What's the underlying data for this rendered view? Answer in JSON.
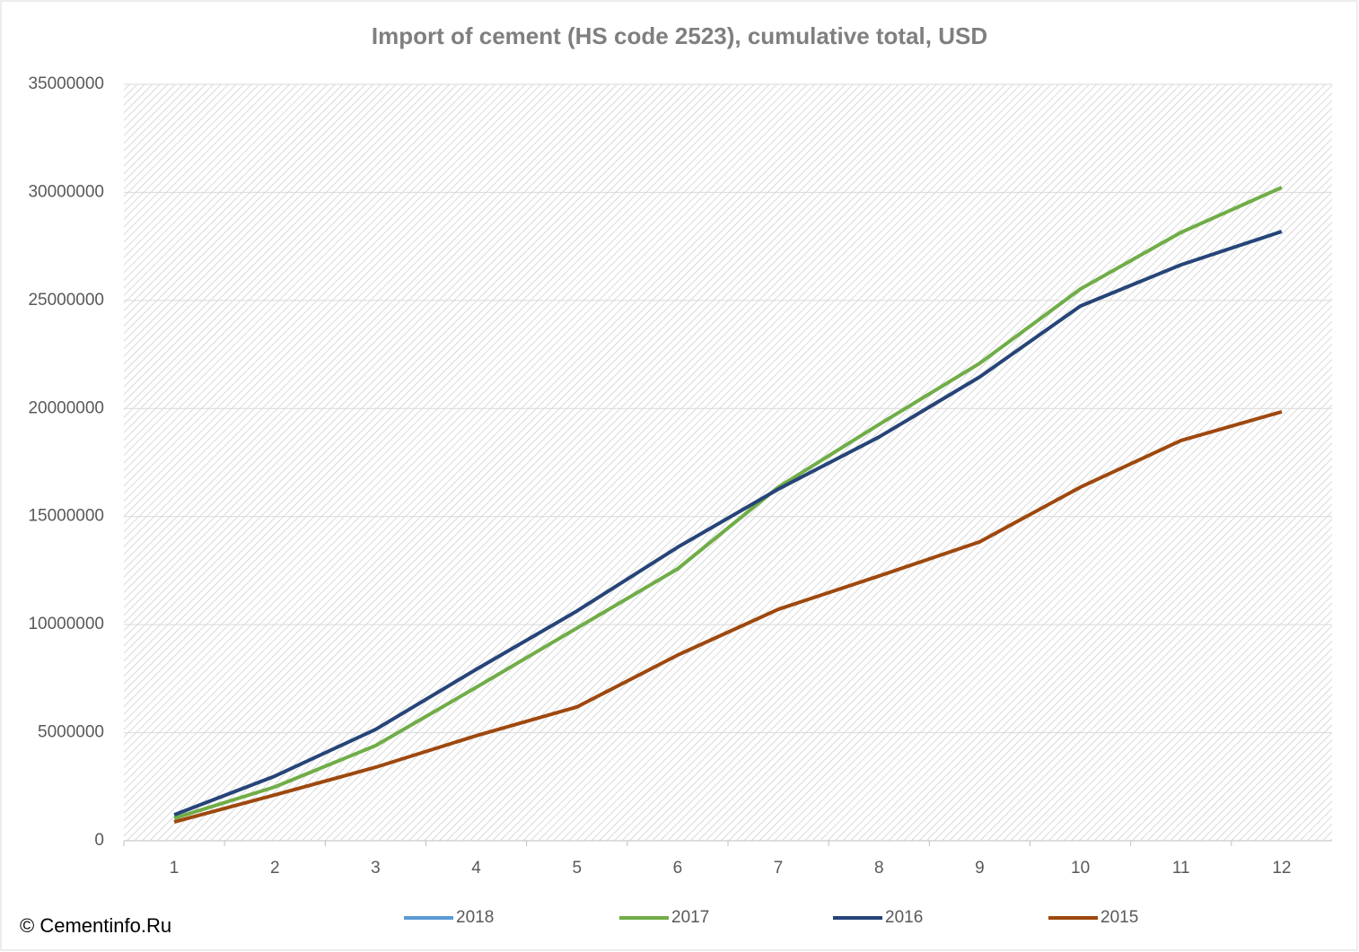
{
  "chart_data": {
    "type": "line",
    "title": "Import of cement (HS code 2523), cumulative total, USD",
    "watermark": "© Cementinfo.Ru",
    "categories": [
      "1",
      "2",
      "3",
      "4",
      "5",
      "6",
      "7",
      "8",
      "9",
      "10",
      "11",
      "12"
    ],
    "series": [
      {
        "name": "2018",
        "color": "#5b9bd5",
        "values": [
          null,
          null,
          null,
          null,
          null,
          null,
          null,
          null,
          null,
          null,
          null,
          null
        ]
      },
      {
        "name": "2017",
        "color": "#70ad47",
        "values": [
          1040000,
          2490000,
          4400000,
          7100000,
          9840000,
          12580000,
          16360000,
          19260000,
          22090000,
          25530000,
          28150000,
          30230000
        ]
      },
      {
        "name": "2016",
        "color": "#264478",
        "values": [
          1200000,
          2990000,
          5150000,
          7930000,
          10630000,
          13580000,
          16270000,
          18680000,
          21460000,
          24740000,
          26650000,
          28190000
        ]
      },
      {
        "name": "2015",
        "color": "#9e480e",
        "values": [
          870000,
          2120000,
          3400000,
          4860000,
          6190000,
          8590000,
          10710000,
          12250000,
          13830000,
          16360000,
          18520000,
          19850000
        ]
      }
    ],
    "ylim": [
      0,
      35000000
    ],
    "yticks": [
      0,
      5000000,
      10000000,
      15000000,
      20000000,
      25000000,
      30000000,
      35000000
    ],
    "grid": true,
    "legend": "bottom"
  }
}
